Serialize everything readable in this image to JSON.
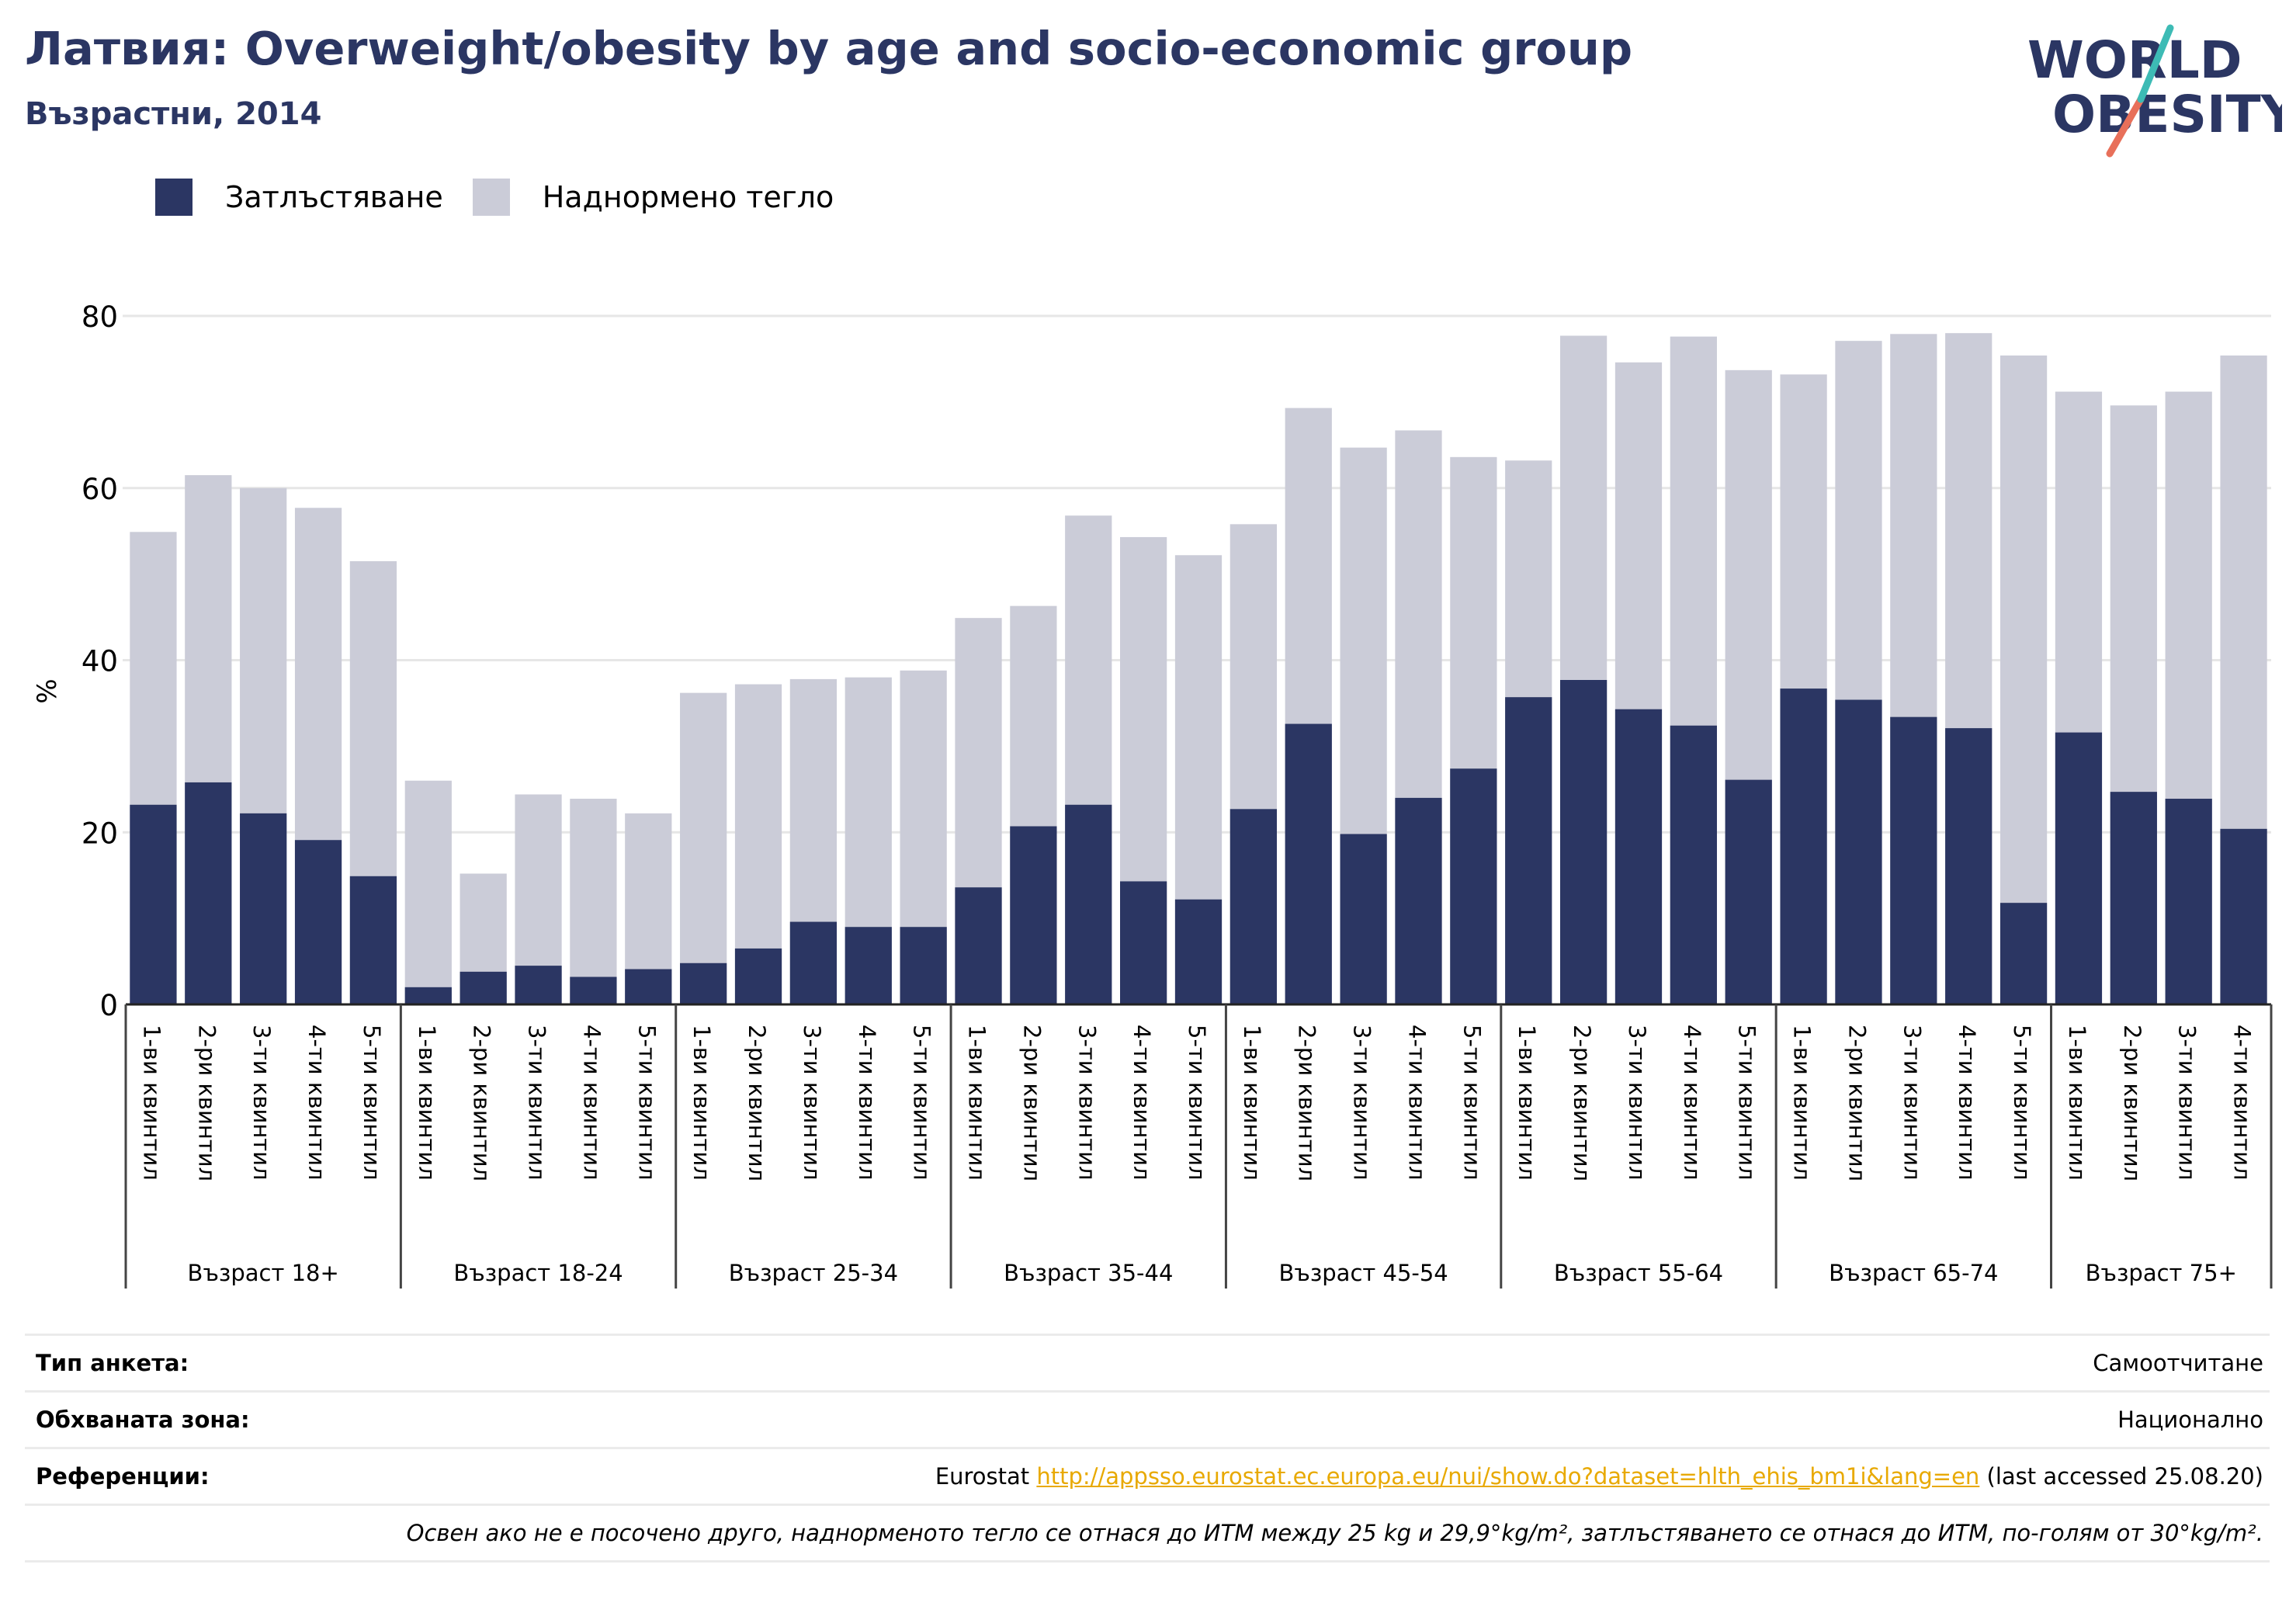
{
  "header": {
    "title": "Латвия: Overweight/obesity by age and socio-economic group",
    "subtitle": "Възрастни, 2014"
  },
  "logo": {
    "line1": "WORLD",
    "line2": "OBESITY"
  },
  "colors": {
    "obesity": "#2b3663",
    "overweight": "#cbccd8",
    "title": "#2b3663",
    "accent_teal": "#3dbbb5",
    "accent_coral": "#e8705a",
    "link": "#e8a900"
  },
  "chart_data": {
    "type": "bar",
    "stacked": false,
    "overlay": true,
    "ylabel": "%",
    "ylim": [
      0,
      80
    ],
    "yticks": [
      0,
      20,
      40,
      60,
      80
    ],
    "grid": true,
    "legend_position": "top-left",
    "groups": [
      "Възраст 18+",
      "Възраст 18-24",
      "Възраст 25-34",
      "Възраст 35-44",
      "Възраст 45-54",
      "Възраст 55-64",
      "Възраст 65-74",
      "Възраст 75+"
    ],
    "group_sizes": [
      5,
      5,
      5,
      5,
      5,
      5,
      5,
      4
    ],
    "categories": [
      "1-ви квинтил",
      "2-ри квинтил",
      "3-ти квинтил",
      "4-ти квинтил",
      "5-ти квинтил",
      "1-ви квинтил",
      "2-ри квинтил",
      "3-ти квинтил",
      "4-ти квинтил",
      "5-ти квинтил",
      "1-ви квинтил",
      "2-ри квинтил",
      "3-ти квинтил",
      "4-ти квинтил",
      "5-ти квинтил",
      "1-ви квинтил",
      "2-ри квинтил",
      "3-ти квинтил",
      "4-ти квинтил",
      "5-ти квинтил",
      "1-ви квинтил",
      "2-ри квинтил",
      "3-ти квинтил",
      "4-ти квинтил",
      "5-ти квинтил",
      "1-ви квинтил",
      "2-ри квинтил",
      "3-ти квинтил",
      "4-ти квинтил",
      "5-ти квинтил",
      "1-ви квинтил",
      "2-ри квинтил",
      "3-ти квинтил",
      "4-ти квинтил",
      "5-ти квинтил",
      "1-ви квинтил",
      "2-ри квинтил",
      "3-ти квинтил",
      "4-ти квинтил"
    ],
    "series": [
      {
        "name": "Затлъстяване",
        "color": "#2b3663",
        "values": [
          23.2,
          25.8,
          22.2,
          19.1,
          14.9,
          2.0,
          3.8,
          4.5,
          3.2,
          4.1,
          4.8,
          6.5,
          9.6,
          9.0,
          9.0,
          13.6,
          20.7,
          23.2,
          14.3,
          12.2,
          22.7,
          32.6,
          19.8,
          24.0,
          27.4,
          35.7,
          37.7,
          34.3,
          32.4,
          26.1,
          36.7,
          35.4,
          33.4,
          32.1,
          11.8,
          31.6,
          24.7,
          23.9,
          20.4
        ]
      },
      {
        "name": "Наднормено тегло",
        "color": "#cbccd8",
        "values": [
          54.9,
          61.5,
          60.0,
          57.7,
          51.5,
          26.0,
          15.2,
          24.4,
          23.9,
          22.2,
          36.2,
          37.2,
          37.8,
          38.0,
          38.8,
          44.9,
          46.3,
          56.8,
          54.3,
          52.2,
          55.8,
          69.3,
          64.7,
          66.7,
          63.6,
          63.2,
          77.7,
          74.6,
          77.6,
          73.7,
          73.2,
          77.1,
          77.9,
          78.0,
          75.4,
          71.2,
          69.6,
          71.2,
          75.4
        ]
      }
    ]
  },
  "info": {
    "survey_label": "Тип анкета:",
    "survey_value": "Самоотчитане",
    "area_label": "Обхваната зона:",
    "area_value": "Национално",
    "refs_label": "Референции:",
    "refs_prefix": "Eurostat",
    "refs_link": "http://appsso.eurostat.ec.europa.eu/nui/show.do?dataset=hlth_ehis_bm1i&lang=en",
    "refs_suffix": "(last accessed 25.08.20)",
    "note": "Освен ако не е посочено друго, наднорменото тегло се отнася до ИТМ между 25 kg и 29,9°kg/m², затлъстяването се отнася до ИТМ, по-голям от 30°kg/m²."
  }
}
